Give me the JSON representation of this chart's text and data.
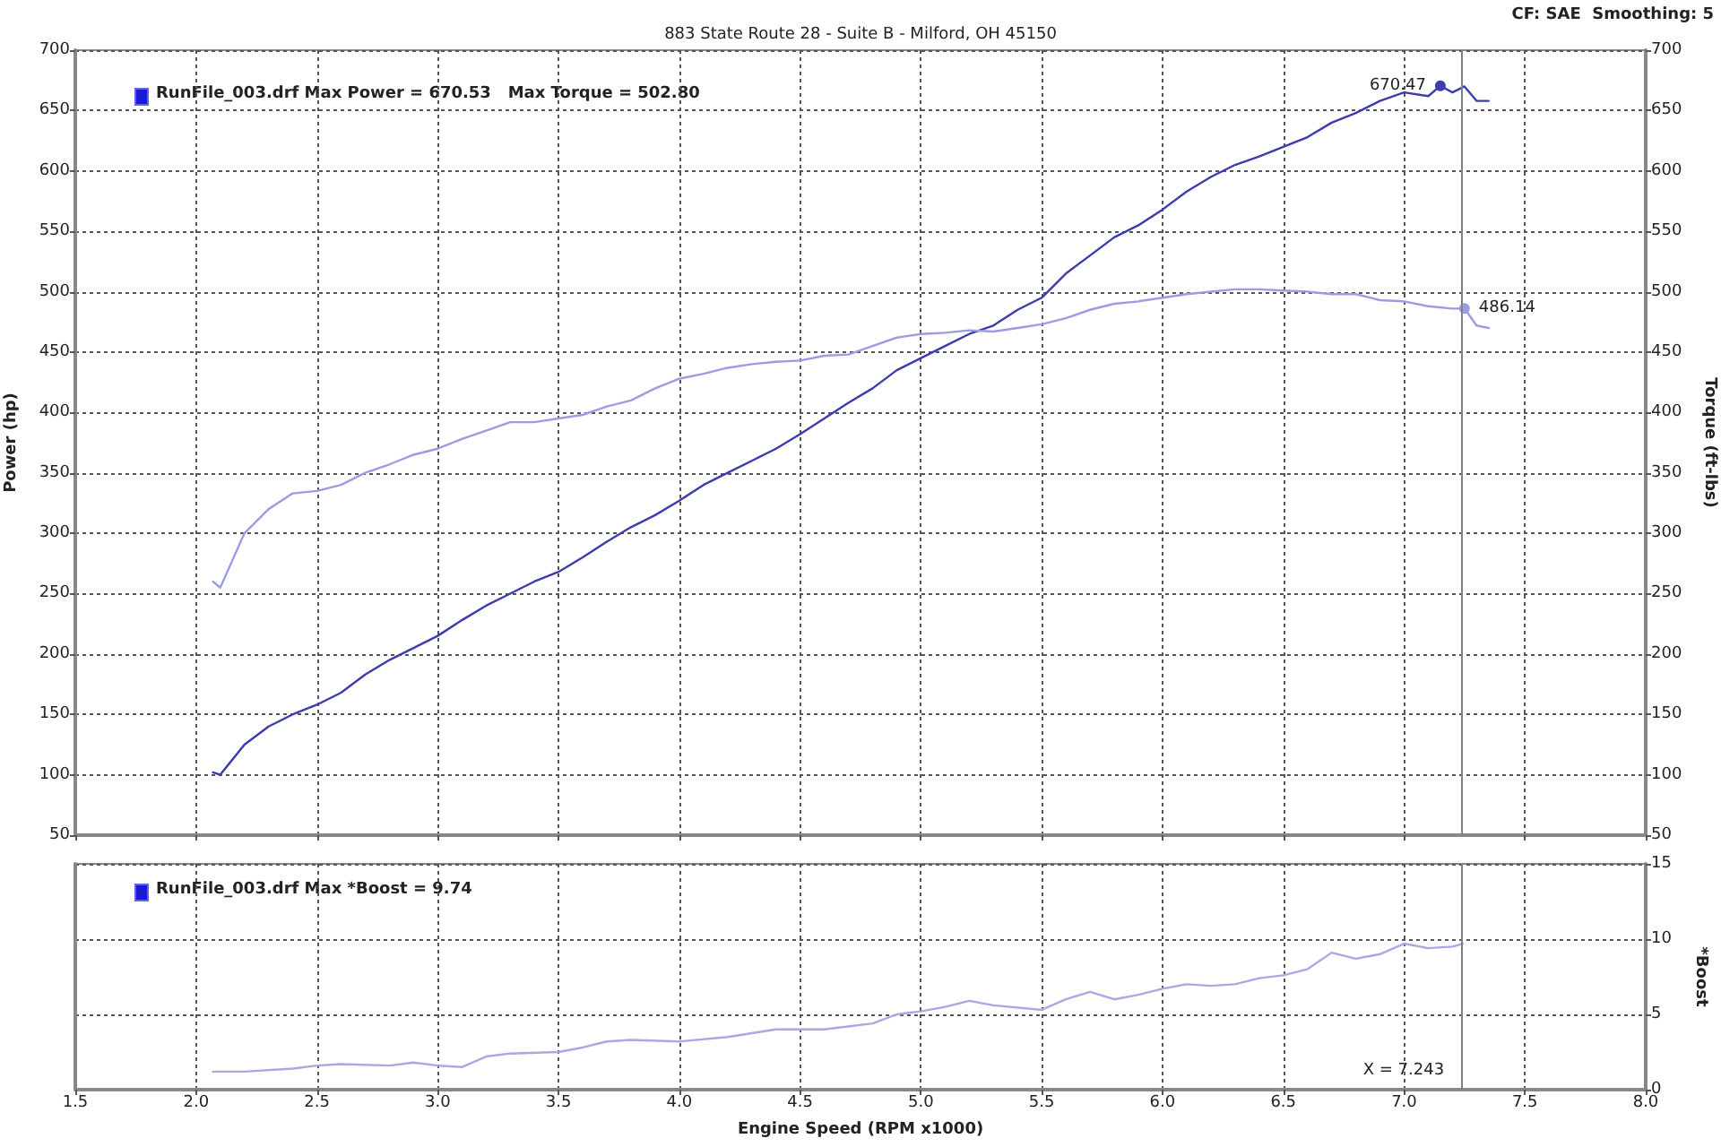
{
  "chart_data": [
    {
      "type": "line",
      "title": "883 State Route 28 - Suite B - Milford, OH 45150",
      "ylabel": "Power (hp)",
      "y2label": "Torque (ft-lbs)",
      "annotations": [
        "RunFile_003.drf Max Power = 670.53   Max Torque = 502.80",
        "CF: SAE  Smoothing: 5"
      ],
      "xlim": [
        1.5,
        8.0
      ],
      "xticks": [
        1.5,
        2,
        2.5,
        3,
        3.5,
        4,
        4.5,
        5,
        5.5,
        6,
        6.5,
        7,
        7.5,
        8
      ],
      "ylim": [
        50,
        700
      ],
      "yticks": [
        50,
        100,
        150,
        200,
        250,
        300,
        350,
        400,
        450,
        500,
        550,
        600,
        650,
        700
      ],
      "y2lim": [
        50,
        700
      ],
      "y2ticks": [
        50,
        100,
        150,
        200,
        250,
        300,
        350,
        400,
        450,
        500,
        550,
        600,
        650,
        700
      ],
      "tick_labels": "y",
      "grid": true,
      "ref_lines": [
        {
          "axis": "x",
          "value": 7.243,
          "color": "#808080"
        }
      ],
      "series": [
        {
          "color": "#3c3cae",
          "x": [
            2.07,
            2.1,
            2.2,
            2.3,
            2.4,
            2.5,
            2.6,
            2.7,
            2.8,
            2.9,
            3.0,
            3.1,
            3.2,
            3.3,
            3.4,
            3.5,
            3.6,
            3.7,
            3.8,
            3.9,
            4.0,
            4.1,
            4.2,
            4.3,
            4.4,
            4.5,
            4.6,
            4.7,
            4.8,
            4.9,
            5.0,
            5.1,
            5.2,
            5.3,
            5.4,
            5.5,
            5.6,
            5.7,
            5.8,
            5.9,
            6.0,
            6.1,
            6.2,
            6.3,
            6.4,
            6.5,
            6.6,
            6.7,
            6.8,
            6.9,
            7.0,
            7.1,
            7.15,
            7.2,
            7.25,
            7.3,
            7.35
          ],
          "values": [
            102,
            100,
            125,
            140,
            150,
            158,
            168,
            183,
            195,
            205,
            215,
            228,
            240,
            250,
            260,
            268,
            280,
            293,
            305,
            315,
            327,
            340,
            350,
            360,
            370,
            382,
            395,
            408,
            420,
            435,
            445,
            455,
            465,
            472,
            485,
            495,
            515,
            530,
            545,
            555,
            568,
            583,
            595,
            605,
            612,
            620,
            628,
            640,
            648,
            658,
            665,
            662,
            670.47,
            665,
            670,
            658,
            658
          ],
          "value_labels": [
            null,
            null,
            null,
            null,
            null,
            null,
            null,
            null,
            null,
            null,
            null,
            null,
            null,
            null,
            null,
            null,
            null,
            null,
            null,
            null,
            null,
            null,
            null,
            null,
            null,
            null,
            null,
            null,
            null,
            null,
            null,
            null,
            null,
            null,
            null,
            null,
            null,
            null,
            null,
            null,
            null,
            null,
            null,
            null,
            null,
            null,
            null,
            null,
            null,
            null,
            null,
            null,
            "670.47",
            null,
            null,
            null,
            null
          ]
        },
        {
          "color": "#9c9ce2",
          "axis": "y2",
          "x": [
            2.07,
            2.1,
            2.2,
            2.3,
            2.4,
            2.5,
            2.6,
            2.7,
            2.8,
            2.9,
            3.0,
            3.1,
            3.2,
            3.3,
            3.4,
            3.5,
            3.6,
            3.7,
            3.8,
            3.9,
            4.0,
            4.1,
            4.2,
            4.3,
            4.4,
            4.5,
            4.6,
            4.7,
            4.8,
            4.9,
            5.0,
            5.1,
            5.2,
            5.3,
            5.4,
            5.5,
            5.6,
            5.7,
            5.8,
            5.9,
            6.0,
            6.1,
            6.2,
            6.3,
            6.4,
            6.5,
            6.6,
            6.7,
            6.8,
            6.9,
            7.0,
            7.1,
            7.2,
            7.25,
            7.3,
            7.35
          ],
          "values": [
            260,
            255,
            300,
            320,
            333,
            335,
            340,
            350,
            357,
            365,
            370,
            378,
            385,
            392,
            392,
            395,
            398,
            405,
            410,
            420,
            428,
            432,
            437,
            440,
            442,
            443,
            447,
            448,
            455,
            462,
            465,
            466,
            468,
            467,
            470,
            473,
            478,
            485,
            490,
            492,
            495,
            498,
            500,
            502,
            502,
            501,
            500,
            498,
            498,
            493,
            492,
            488,
            486,
            486.14,
            472,
            470
          ],
          "value_labels": [
            null,
            null,
            null,
            null,
            null,
            null,
            null,
            null,
            null,
            null,
            null,
            null,
            null,
            null,
            null,
            null,
            null,
            null,
            null,
            null,
            null,
            null,
            null,
            null,
            null,
            null,
            null,
            null,
            null,
            null,
            null,
            null,
            null,
            null,
            null,
            null,
            null,
            null,
            null,
            null,
            null,
            null,
            null,
            null,
            null,
            null,
            null,
            null,
            null,
            null,
            null,
            null,
            null,
            "486.14",
            null,
            null
          ]
        }
      ]
    },
    {
      "type": "line",
      "xlabel": "Engine Speed (RPM x1000)",
      "y2label": "*Boost",
      "annotations": [
        "RunFile_003.drf Max *Boost = 9.74"
      ],
      "xlim": [
        1.5,
        8.0
      ],
      "xticks": [
        1.5,
        {
          "value": 2,
          "label": "2.0"
        },
        2.5,
        {
          "value": 3,
          "label": "3.0"
        },
        3.5,
        {
          "value": 4,
          "label": "4.0"
        },
        4.5,
        {
          "value": 5,
          "label": "5.0"
        },
        5.5,
        {
          "value": 6,
          "label": "6.0"
        },
        6.5,
        {
          "value": 7,
          "label": "7.0"
        },
        7.5,
        {
          "value": 8,
          "label": "8.0"
        }
      ],
      "y2lim": [
        0,
        15
      ],
      "y2ticks": [
        0,
        5,
        10,
        15
      ],
      "grid": true,
      "ref_lines": [
        {
          "axis": "x",
          "value": 7.243,
          "label": "X = 7.243",
          "color": "#808080"
        }
      ],
      "series": [
        {
          "color": "#a8a8e2",
          "axis": "y2",
          "x": [
            2.07,
            2.2,
            2.4,
            2.5,
            2.6,
            2.8,
            2.9,
            3.0,
            3.1,
            3.2,
            3.3,
            3.5,
            3.6,
            3.7,
            3.8,
            4.0,
            4.2,
            4.4,
            4.6,
            4.8,
            4.9,
            5.0,
            5.1,
            5.2,
            5.3,
            5.5,
            5.6,
            5.7,
            5.8,
            5.9,
            6.0,
            6.1,
            6.2,
            6.3,
            6.4,
            6.5,
            6.6,
            6.7,
            6.8,
            6.9,
            7.0,
            7.1,
            7.2,
            7.243
          ],
          "values": [
            1.2,
            1.2,
            1.4,
            1.6,
            1.7,
            1.6,
            1.8,
            1.6,
            1.5,
            2.2,
            2.4,
            2.5,
            2.8,
            3.2,
            3.3,
            3.2,
            3.5,
            4.0,
            4.0,
            4.4,
            5.0,
            5.2,
            5.5,
            5.9,
            5.6,
            5.3,
            6.0,
            6.5,
            6.0,
            6.3,
            6.7,
            7.0,
            6.9,
            7.0,
            7.4,
            7.6,
            8.0,
            9.1,
            8.7,
            9.0,
            9.7,
            9.4,
            9.5,
            9.7
          ]
        }
      ]
    }
  ]
}
